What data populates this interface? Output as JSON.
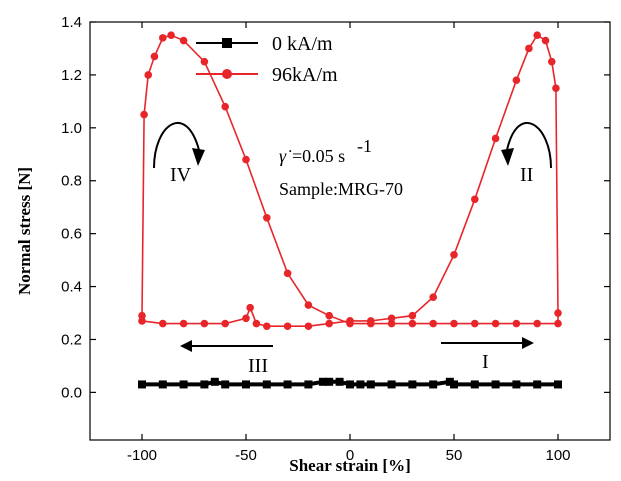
{
  "chart_data": {
    "type": "line",
    "xlabel": "Shear strain [%]",
    "ylabel": "Normal stress [N]",
    "xlim": [
      -125,
      125
    ],
    "ylim": [
      -0.18,
      1.4
    ],
    "xticks": [
      -100,
      -50,
      0,
      50,
      100
    ],
    "yticks": [
      0.0,
      0.2,
      0.4,
      0.6,
      0.8,
      1.0,
      1.2,
      1.4
    ],
    "xtick_labels": [
      "-100",
      "-50",
      "0",
      "50",
      "100"
    ],
    "ytick_labels": [
      "0.0",
      "0.2",
      "0.4",
      "0.6",
      "0.8",
      "1.0",
      "1.2",
      "1.4"
    ],
    "grid": false,
    "legend_position": "top-center",
    "series": [
      {
        "name": "0 kA/m",
        "color": "#000000",
        "marker": "square",
        "x": [
          -100,
          -90,
          -80,
          -70,
          -65,
          -60,
          -50,
          -40,
          -30,
          -20,
          -13,
          -10,
          -5,
          0,
          5,
          10,
          20,
          30,
          40,
          48,
          50,
          60,
          70,
          80,
          90,
          100
        ],
        "y": [
          0.03,
          0.03,
          0.03,
          0.03,
          0.04,
          0.03,
          0.03,
          0.03,
          0.03,
          0.03,
          0.04,
          0.04,
          0.04,
          0.03,
          0.03,
          0.03,
          0.03,
          0.03,
          0.03,
          0.04,
          0.03,
          0.03,
          0.03,
          0.03,
          0.03,
          0.03
        ]
      },
      {
        "name": "96kA/m",
        "color": "#e8262a",
        "marker": "circle",
        "x": [
          0,
          10,
          20,
          30,
          40,
          50,
          60,
          70,
          80,
          86,
          90,
          94,
          97,
          99,
          100,
          100,
          90,
          80,
          70,
          60,
          50,
          40,
          30,
          20,
          10,
          0,
          -10,
          -20,
          -30,
          -40,
          -50,
          -60,
          -70,
          -80,
          -86,
          -90,
          -94,
          -97,
          -99,
          -100,
          -100,
          -90,
          -80,
          -70,
          -60,
          -50,
          -48,
          -45,
          -40,
          -30,
          -20,
          -10,
          0
        ],
        "y": [
          0.27,
          0.27,
          0.28,
          0.29,
          0.36,
          0.52,
          0.73,
          0.96,
          1.18,
          1.3,
          1.35,
          1.33,
          1.25,
          1.15,
          0.3,
          0.26,
          0.26,
          0.26,
          0.26,
          0.26,
          0.26,
          0.26,
          0.26,
          0.26,
          0.26,
          0.26,
          0.29,
          0.33,
          0.45,
          0.66,
          0.88,
          1.08,
          1.25,
          1.33,
          1.35,
          1.34,
          1.27,
          1.2,
          1.05,
          0.29,
          0.27,
          0.26,
          0.26,
          0.26,
          0.26,
          0.28,
          0.32,
          0.26,
          0.25,
          0.25,
          0.25,
          0.26,
          0.27
        ]
      }
    ],
    "annotations": {
      "rate_text": "=0.05 s",
      "rate_symbol": "γ̇",
      "rate_exp": "-1",
      "sample_text": "Sample:MRG-70",
      "region_labels": [
        "I",
        "II",
        "III",
        "IV"
      ]
    }
  }
}
